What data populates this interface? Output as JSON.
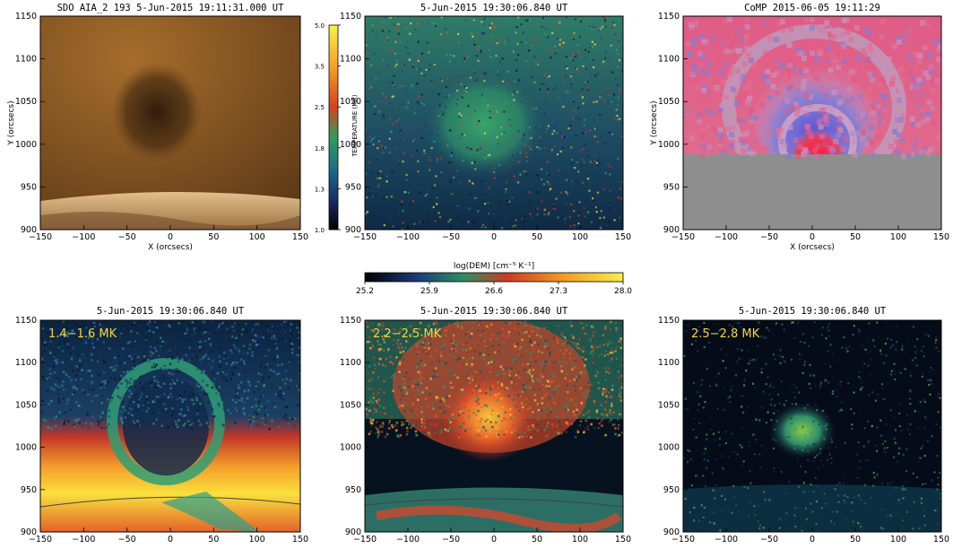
{
  "panels": [
    {
      "id": "aia193",
      "title": "SDO AIA_2 193   5-Jun-2015 19:11:31.000 UT",
      "xlabel": "X (orcsecs)",
      "ylabel": "Y (orcsecs)",
      "xticks": [
        "−150",
        "−100",
        "−50",
        "0",
        "50",
        "100",
        "150"
      ],
      "yticks": [
        "900",
        "950",
        "1000",
        "1050",
        "1100",
        "1150"
      ],
      "band_label": "",
      "colormap": "sdo-193-brown"
    },
    {
      "id": "temperature",
      "title": "5-Jun-2015 19:30:06.840 UT",
      "xlabel": "",
      "ylabel": "",
      "xticks": [
        "−150",
        "−100",
        "−50",
        "0",
        "50",
        "100",
        "150"
      ],
      "yticks": [
        "900",
        "950",
        "1000",
        "1050",
        "1100",
        "1150"
      ],
      "band_label": "",
      "colormap": "temperature-rainbow"
    },
    {
      "id": "comp",
      "title": "CoMP 2015-06-05 19:11:29",
      "xlabel": "X (orcsecs)",
      "ylabel": "Y (orcsecs)",
      "xticks": [
        "−150",
        "−100",
        "−50",
        "0",
        "50",
        "100",
        "150"
      ],
      "yticks": [
        "900",
        "950",
        "1000",
        "1050",
        "1100",
        "1150"
      ],
      "band_label": "",
      "colormap": "comp-doppler"
    },
    {
      "id": "dem1",
      "title": "5-Jun-2015 19:30:06.840 UT",
      "xlabel": "",
      "ylabel": "",
      "xticks": [
        "−150",
        "−100",
        "−50",
        "0",
        "50",
        "100",
        "150"
      ],
      "yticks": [
        "900",
        "950",
        "1000",
        "1050",
        "1100",
        "1150"
      ],
      "band_label": "1.4−1.6 MK",
      "colormap": "dem"
    },
    {
      "id": "dem2",
      "title": "5-Jun-2015 19:30:06.840 UT",
      "xlabel": "",
      "ylabel": "",
      "xticks": [
        "−150",
        "−100",
        "−50",
        "0",
        "50",
        "100",
        "150"
      ],
      "yticks": [
        "900",
        "950",
        "1000",
        "1050",
        "1100",
        "1150"
      ],
      "band_label": "2.2−2.5 MK",
      "colormap": "dem"
    },
    {
      "id": "dem3",
      "title": "5-Jun-2015 19:30:06.840 UT",
      "xlabel": "",
      "ylabel": "",
      "xticks": [
        "−150",
        "−100",
        "−50",
        "0",
        "50",
        "100",
        "150"
      ],
      "yticks": [
        "900",
        "950",
        "1000",
        "1050",
        "1100",
        "1150"
      ],
      "band_label": "2.5−2.8 MK",
      "colormap": "dem"
    }
  ],
  "temperature_colorbar": {
    "label": "TEMPERATURE (MK)",
    "ticks": [
      "5.0",
      "3.5",
      "2.5",
      "1.8",
      "1.3",
      "1.0"
    ]
  },
  "dem_colorbar": {
    "label": "log(DEM) [cm⁻⁵ K⁻¹]",
    "ticks": [
      "25.2",
      "25.9",
      "26.6",
      "27.3",
      "28.0"
    ]
  }
}
